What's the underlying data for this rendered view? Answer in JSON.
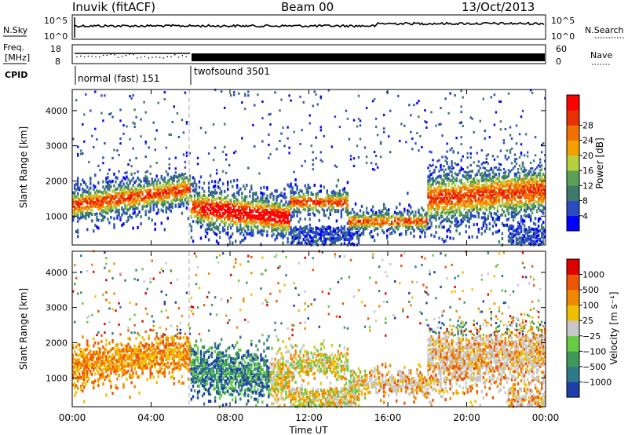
{
  "header": {
    "station": "Inuvik (fitACF)",
    "beam": "Beam 00",
    "date": "13/Oct/2013"
  },
  "status_panels": {
    "nsky": {
      "label": "N.Sky",
      "ticks": [
        "10^5",
        "10^0"
      ]
    },
    "nsearch": {
      "label": "N.Search",
      "ticks": [
        "10^5",
        "10^0"
      ]
    },
    "freq": {
      "label_line1": "Freq.",
      "label_line2": "[MHz]",
      "ticks": [
        "18",
        "8"
      ]
    },
    "nave": {
      "label": "Nave",
      "ticks": [
        "60",
        "0"
      ]
    },
    "cpid": {
      "label": "CPID",
      "modes": [
        "normal (fast) 151",
        "twofsound 3501"
      ]
    }
  },
  "chart_data": [
    {
      "type": "heatmap",
      "name": "power",
      "ylabel": "Slant Range [km]",
      "ylim": [
        180,
        4600
      ],
      "yticks": [
        "1000",
        "2000",
        "3000",
        "4000"
      ],
      "xlim": [
        0,
        24
      ],
      "xticks": [
        "00:00",
        "04:00",
        "08:00",
        "12:00",
        "16:00",
        "20:00",
        "00:00"
      ],
      "colorbar": {
        "label": "Power [dB]",
        "ticks": [
          "4",
          "8",
          "12",
          "16",
          "20",
          "24",
          "28"
        ],
        "colors": [
          "#0000ff",
          "#2a4cc0",
          "#3d7a6a",
          "#5aa055",
          "#b8d040",
          "#f5a000",
          "#f07000",
          "#e83000",
          "#ff0000"
        ]
      }
    },
    {
      "type": "heatmap",
      "name": "velocity",
      "ylabel": "Slant Range [km]",
      "ylim": [
        180,
        4600
      ],
      "yticks": [
        "1000",
        "2000",
        "3000",
        "4000"
      ],
      "xlim": [
        0,
        24
      ],
      "xticks": [
        "00:00",
        "04:00",
        "08:00",
        "12:00",
        "16:00",
        "20:00",
        "00:00"
      ],
      "xlabel": "Time UT",
      "colorbar": {
        "label": "Velocity [m s⁻¹]",
        "ticks": [
          "1000",
          "500",
          "100",
          "25",
          "−25",
          "−100",
          "−500",
          "−1000"
        ],
        "colors": [
          "#1f3fa8",
          "#2f7a8a",
          "#3f9a5a",
          "#66cc44",
          "#c8c8c8",
          "#f0c000",
          "#f08800",
          "#ee5500",
          "#e00000"
        ]
      }
    }
  ]
}
